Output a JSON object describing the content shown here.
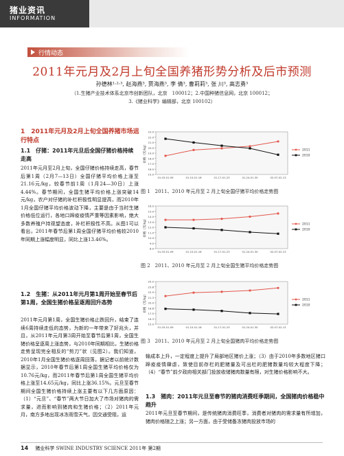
{
  "header": {
    "title": "猪业资讯",
    "subtitle": "INFORMATION"
  },
  "section_tag": "行情动态",
  "title": "2011年元月及2月上旬全国养猪形势分析及后市预测",
  "authors": "孙德林¹·²·³, 赵海燕³, 贾海燕³, 李 倩³, 曹莉莉³, 张 川³, 高志勇³",
  "affiliation1": "（1.生猪产业技术体系北京市创新团队，北京　100012；2.中国种猪信息网，北京 100012；",
  "affiliation2": "3.《猪业科学》编辑部，北京 100102）",
  "sec1_title": "1　2011年元月及2月上旬全国养猪市场运行特点",
  "sec11_title": "1.1　仔猪：2011年元旦后全国仔猪价格持续走高",
  "sec11_body": "2011年元月至2月上旬，全国仔猪价格持续走高，春节后第1周（2月7—13日）全国仔猪平均价格上涨至21.16元/kg，较春节前1周（1月24—30日）上涨4.44%。春节期间，全国生猪平均价格上涨突破14元/kg，农户对仔猪的补栏积极性明显提高，而2010年1月全国仔猪平均价格波动下降，主要是由于当时生猪价格低位运行，各地口蹄疫疫情严重等因素影响，绝大多数养殖户持观望态度，补栏积极性不高。从图1可以看出，2011年春节后第1周全国仔猪平均价格较2010年同期上涨幅度明显，同比上涨13.46%。",
  "sec12_title": "1.2　生猪：从2011年元月第1周开始至春节后第1周，全国生猪价格呈逐周回升态势",
  "sec12_body": "2011年元月第1周，全国生猪价格止跌回升，结束了连续6周持续走低的态势，为新的一年带来了好兆头，并且，从2011年元月第3周开始至春节后第1周，全国生猪价格呈逐周上涨态势，与2010年同期相比，生猪价格走势呈现完全相反的“剪刀”状（见图2）。我们知道，2010年1月全国生猪价格逐周回落，据记者以前统计数据显示，2010年春节后第1周全国生猪平均价格仅为10.76元/kg，而2011年春节后第1周全国生猪平均价格上涨至14.65元/kg，同比上涨36.15%。元旦至春节期间全国生猪价格持续上涨主要有以下几方面原因：（1）“元旦”、“春节”两大节日加大了市场对猪肉的需求量，进而影响到猪肉和生猪价格；（2）2011年元月，南方多地出现冰冻雨雪天气，因交通受阻，运",
  "right_body1": "输成本上升，一定程度上提升了局部地区猪价上涨；（3）由于2010年多数地区猪口蹄疫疫情肆虐，致使目前存栏的肥猪量及可出栏的肥猪数量均较大程度下降；（4）“春节”前夕政府相关部门投放收储猪肉数量有限，对生猪价格影响不大。",
  "sec13_title": "1.3　猪肉：2011年元旦至春节的猪肉消费旺季期间，全国猪肉价格稳中趋升",
  "right_body2": "2011年元旦至春节期间，是传统猪肉消费旺季，消费者对猪肉的需求量有所增加，猪肉价格随之上涨；另一方面，由于受储备冻猪肉投放市场的",
  "chart_data": [
    {
      "type": "line",
      "title": "",
      "ylabel": "价格（元/kg）",
      "ylim": [
        15,
        23
      ],
      "categories": [
        "01.03-01.09",
        "01.10-01.16",
        "01.17-01.23",
        "01.24-01.30",
        "02.07-02.13"
      ],
      "series": [
        {
          "name": "2011",
          "color": "#e2574c",
          "values": [
            18.5,
            19.6,
            19.9,
            20.3,
            21.2
          ]
        },
        {
          "name": "2010",
          "color": "#111111",
          "values": [
            21.7,
            21.0,
            20.4,
            19.9,
            18.7
          ]
        }
      ],
      "caption": "图 1　2011、2010 年元月至 2 月上旬全国仔猪平均价格走势图"
    },
    {
      "type": "line",
      "title": "",
      "ylabel": "价格（元/kg）",
      "ylim": [
        8,
        16
      ],
      "categories": [
        "01.03-01.09",
        "01.10-01.16",
        "01.17-01.23",
        "01.24-01.30",
        "02.07-02.13"
      ],
      "series": [
        {
          "name": "2011",
          "color": "#e2574c",
          "values": [
            13.4,
            13.4,
            13.6,
            14.0,
            14.6
          ]
        },
        {
          "name": "2010",
          "color": "#111111",
          "values": [
            12.0,
            11.8,
            11.5,
            11.1,
            10.8
          ]
        }
      ],
      "caption": "图 2　2011、2010 年元月至 2 月上旬全国生猪平均价格走势图"
    },
    {
      "type": "line",
      "title": "",
      "ylabel": "价格（元/kg）",
      "ylim": [
        15,
        25
      ],
      "categories": [
        "01.03-01.09",
        "01.10-01.16",
        "01.17-01.23",
        "01.24-01.30",
        "02.07-02.13"
      ],
      "series": [
        {
          "name": "2011",
          "color": "#e2574c",
          "values": [
            21.6,
            22.4,
            22.6,
            22.9,
            23.5
          ]
        },
        {
          "name": "2010",
          "color": "#111111",
          "values": [
            18.6,
            18.4,
            18.1,
            17.6,
            17.4
          ]
        }
      ],
      "caption": "图 3　2011、2010 年元月至 2 月上旬全国猪肉平均价格走势图"
    }
  ],
  "footer": {
    "page": "14",
    "journal": "猪业科学 SWINE INDUSTRY SCIENCE 2011年 第2期"
  }
}
